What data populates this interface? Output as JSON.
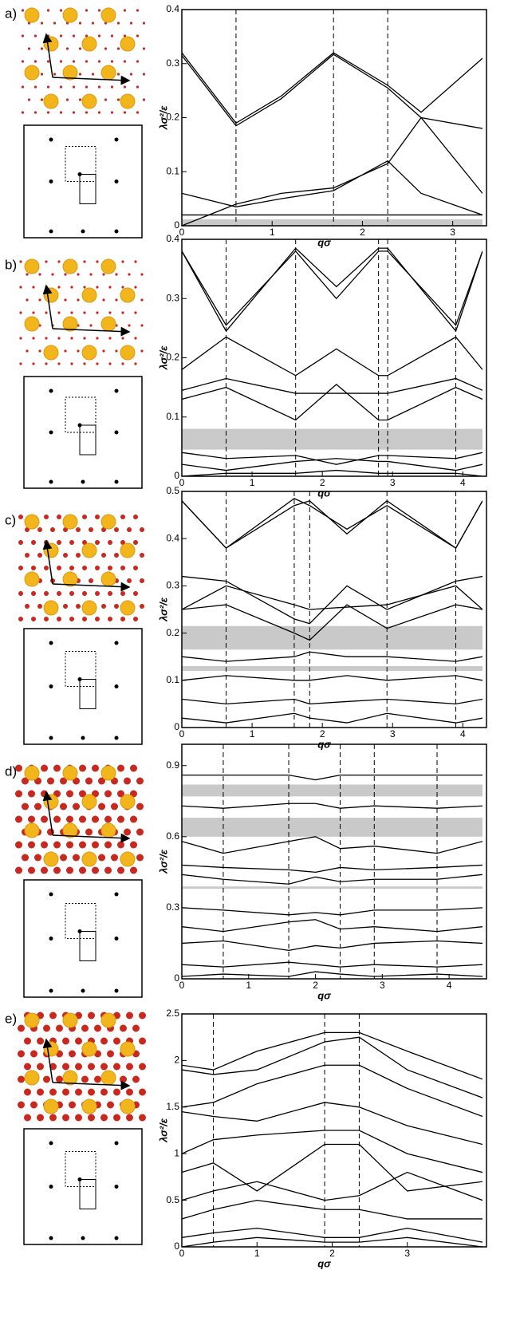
{
  "chart_data": [
    {
      "type": "line",
      "label": "a)",
      "xlabel": "qσ",
      "ylabel": "λσ²/ε",
      "xlim": [
        0,
        3.33
      ],
      "ylim": [
        0,
        0.4
      ],
      "xticks": [
        0,
        1,
        2,
        3
      ],
      "yticks": [
        0,
        0.1,
        0.2,
        0.3,
        0.4
      ],
      "vlines": [
        0.6,
        1.68,
        2.28
      ],
      "bands": [
        [
          0,
          0.012
        ]
      ],
      "x": [
        0,
        0.6,
        1.1,
        1.68,
        2.28,
        2.65,
        3.33
      ],
      "series": [
        {
          "color": "#000000",
          "values": [
            0.32,
            0.19,
            0.24,
            0.32,
            0.26,
            0.21,
            0.31
          ]
        },
        {
          "color": "#000000",
          "values": [
            0.315,
            0.185,
            0.235,
            0.317,
            0.255,
            0.2,
            0.18
          ]
        },
        {
          "color": "#000000",
          "values": [
            0.06,
            0.035,
            0.05,
            0.065,
            0.12,
            0.06,
            0.02
          ]
        },
        {
          "color": "#000000",
          "values": [
            0,
            0.04,
            0.06,
            0.07,
            0.115,
            0.2,
            0.06
          ]
        },
        {
          "color": "#000000",
          "values": [
            0.02,
            0.02,
            0.02,
            0.02,
            0.02,
            0.02,
            0.02
          ]
        }
      ]
    },
    {
      "type": "line",
      "label": "b)",
      "xlabel": "qσ",
      "ylabel": "λσ²/ε",
      "xlim": [
        0,
        4.28
      ],
      "ylim": [
        0,
        0.4
      ],
      "xticks": [
        0,
        1,
        2,
        3,
        4
      ],
      "yticks": [
        0,
        0.1,
        0.2,
        0.3,
        0.4
      ],
      "vlines": [
        0.63,
        1.62,
        2.8,
        2.93,
        3.9
      ],
      "bands": [
        [
          0.045,
          0.08
        ]
      ],
      "x": [
        0,
        0.63,
        1.62,
        2.2,
        2.8,
        2.93,
        3.9,
        4.28
      ],
      "series": [
        {
          "color": "#000000",
          "values": [
            0.38,
            0.255,
            0.38,
            0.3,
            0.38,
            0.38,
            0.255,
            0.38
          ]
        },
        {
          "color": "#000000",
          "values": [
            0.38,
            0.245,
            0.385,
            0.32,
            0.385,
            0.385,
            0.245,
            0.38
          ]
        },
        {
          "color": "#000000",
          "values": [
            0.18,
            0.235,
            0.17,
            0.215,
            0.17,
            0.17,
            0.235,
            0.18
          ]
        },
        {
          "color": "#000000",
          "values": [
            0.13,
            0.15,
            0.095,
            0.155,
            0.095,
            0.095,
            0.15,
            0.13
          ]
        },
        {
          "color": "#000000",
          "values": [
            0.145,
            0.165,
            0.14,
            0.14,
            0.14,
            0.14,
            0.165,
            0.145
          ]
        },
        {
          "color": "#000000",
          "values": [
            0.04,
            0.03,
            0.035,
            0.02,
            0.035,
            0.035,
            0.03,
            0.04
          ]
        },
        {
          "color": "#000000",
          "values": [
            0.02,
            0.01,
            0.025,
            0.03,
            0.025,
            0.025,
            0.01,
            0.02
          ]
        },
        {
          "color": "#000000",
          "values": [
            0,
            0.005,
            0.005,
            0.01,
            0.005,
            0.005,
            0.005,
            0
          ]
        }
      ]
    },
    {
      "type": "line",
      "label": "c)",
      "xlabel": "qσ",
      "ylabel": "λσ²/ε",
      "xlim": [
        0,
        4.28
      ],
      "ylim": [
        0,
        0.5
      ],
      "xticks": [
        0,
        1,
        2,
        3,
        4
      ],
      "yticks": [
        0,
        0.1,
        0.2,
        0.3,
        0.4,
        0.5
      ],
      "vlines": [
        0.63,
        1.6,
        1.82,
        2.92,
        3.9
      ],
      "bands": [
        [
          0.12,
          0.13
        ],
        [
          0.165,
          0.215
        ]
      ],
      "x": [
        0,
        0.63,
        1.6,
        1.82,
        2.35,
        2.92,
        3.9,
        4.28
      ],
      "series": [
        {
          "color": "#000000",
          "values": [
            0.48,
            0.38,
            0.47,
            0.48,
            0.41,
            0.48,
            0.38,
            0.48
          ]
        },
        {
          "color": "#000000",
          "values": [
            0.48,
            0.38,
            0.485,
            0.47,
            0.42,
            0.47,
            0.38,
            0.48
          ]
        },
        {
          "color": "#000000",
          "values": [
            0.32,
            0.31,
            0.23,
            0.22,
            0.3,
            0.25,
            0.31,
            0.32
          ]
        },
        {
          "color": "#000000",
          "values": [
            0.25,
            0.3,
            0.26,
            0.25,
            0.255,
            0.26,
            0.3,
            0.25
          ]
        },
        {
          "color": "#000000",
          "values": [
            0.25,
            0.26,
            0.2,
            0.185,
            0.26,
            0.21,
            0.26,
            0.25
          ]
        },
        {
          "color": "#000000",
          "values": [
            0.15,
            0.14,
            0.15,
            0.16,
            0.15,
            0.15,
            0.14,
            0.15
          ]
        },
        {
          "color": "#000000",
          "values": [
            0.1,
            0.11,
            0.1,
            0.1,
            0.11,
            0.1,
            0.11,
            0.1
          ]
        },
        {
          "color": "#000000",
          "values": [
            0.06,
            0.05,
            0.06,
            0.05,
            0.055,
            0.06,
            0.05,
            0.06
          ]
        },
        {
          "color": "#000000",
          "values": [
            0.02,
            0.01,
            0.03,
            0.02,
            0.01,
            0.03,
            0.01,
            0.02
          ]
        }
      ]
    },
    {
      "type": "line",
      "label": "d)",
      "xlabel": "qσ",
      "ylabel": "λσ²/ε",
      "xlim": [
        0,
        4.5
      ],
      "ylim": [
        0,
        0.99
      ],
      "xticks": [
        0,
        1,
        2,
        3,
        4
      ],
      "yticks": [
        0,
        0.3,
        0.6,
        0.9
      ],
      "vlines": [
        0.62,
        1.6,
        2.37,
        2.88,
        3.82
      ],
      "bands": [
        [
          0.38,
          0.39
        ],
        [
          0.6,
          0.68
        ],
        [
          0.77,
          0.82
        ]
      ],
      "x": [
        0,
        0.62,
        1.6,
        2.0,
        2.37,
        2.88,
        3.82,
        4.5
      ],
      "series": [
        {
          "color": "#000000",
          "values": [
            0.86,
            0.86,
            0.86,
            0.84,
            0.86,
            0.86,
            0.86,
            0.86
          ]
        },
        {
          "color": "#000000",
          "values": [
            0.73,
            0.72,
            0.74,
            0.74,
            0.72,
            0.73,
            0.72,
            0.73
          ]
        },
        {
          "color": "#000000",
          "values": [
            0.58,
            0.53,
            0.58,
            0.6,
            0.55,
            0.56,
            0.53,
            0.58
          ]
        },
        {
          "color": "#000000",
          "values": [
            0.48,
            0.47,
            0.46,
            0.45,
            0.47,
            0.46,
            0.47,
            0.48
          ]
        },
        {
          "color": "#000000",
          "values": [
            0.44,
            0.42,
            0.4,
            0.43,
            0.41,
            0.42,
            0.42,
            0.44
          ]
        },
        {
          "color": "#000000",
          "values": [
            0.3,
            0.29,
            0.27,
            0.28,
            0.27,
            0.29,
            0.29,
            0.3
          ]
        },
        {
          "color": "#000000",
          "values": [
            0.22,
            0.2,
            0.24,
            0.25,
            0.21,
            0.22,
            0.2,
            0.22
          ]
        },
        {
          "color": "#000000",
          "values": [
            0.15,
            0.16,
            0.12,
            0.14,
            0.13,
            0.15,
            0.16,
            0.15
          ]
        },
        {
          "color": "#000000",
          "values": [
            0.06,
            0.05,
            0.07,
            0.06,
            0.05,
            0.06,
            0.05,
            0.06
          ]
        },
        {
          "color": "#000000",
          "values": [
            0.01,
            0.02,
            0.01,
            0.03,
            0.02,
            0.01,
            0.02,
            0.01
          ]
        }
      ]
    },
    {
      "type": "line",
      "label": "e)",
      "xlabel": "qσ",
      "ylabel": "λσ²/ε",
      "xlim": [
        0,
        4.0
      ],
      "ylim": [
        0,
        2.5
      ],
      "xticks": [
        0,
        1,
        2,
        3
      ],
      "yticks": [
        0,
        0.5,
        1,
        1.5,
        2,
        2.5
      ],
      "vlines": [
        0.42,
        1.9,
        2.36
      ],
      "bands": [],
      "x": [
        0,
        0.42,
        1.0,
        1.9,
        2.36,
        3.0,
        4.0
      ],
      "series": [
        {
          "color": "#000000",
          "values": [
            1.95,
            1.9,
            2.1,
            2.3,
            2.3,
            2.1,
            1.8
          ]
        },
        {
          "color": "#000000",
          "values": [
            1.9,
            1.85,
            1.9,
            2.2,
            2.25,
            1.9,
            1.6
          ]
        },
        {
          "color": "#000000",
          "values": [
            1.5,
            1.55,
            1.75,
            1.95,
            1.95,
            1.7,
            1.4
          ]
        },
        {
          "color": "#000000",
          "values": [
            1.45,
            1.4,
            1.35,
            1.55,
            1.5,
            1.3,
            1.1
          ]
        },
        {
          "color": "#000000",
          "values": [
            1.0,
            1.15,
            1.2,
            1.25,
            1.25,
            1.0,
            0.8
          ]
        },
        {
          "color": "#000000",
          "values": [
            0.8,
            0.9,
            0.6,
            1.1,
            1.1,
            0.6,
            0.7
          ]
        },
        {
          "color": "#000000",
          "values": [
            0.5,
            0.6,
            0.7,
            0.5,
            0.55,
            0.8,
            0.5
          ]
        },
        {
          "color": "#000000",
          "values": [
            0.3,
            0.4,
            0.5,
            0.4,
            0.4,
            0.3,
            0.3
          ]
        },
        {
          "color": "#000000",
          "values": [
            0.1,
            0.15,
            0.2,
            0.1,
            0.1,
            0.2,
            0.05
          ]
        },
        {
          "color": "#000000",
          "values": [
            0,
            0.05,
            0.1,
            0.05,
            0.05,
            0.1,
            0
          ]
        }
      ]
    }
  ]
}
